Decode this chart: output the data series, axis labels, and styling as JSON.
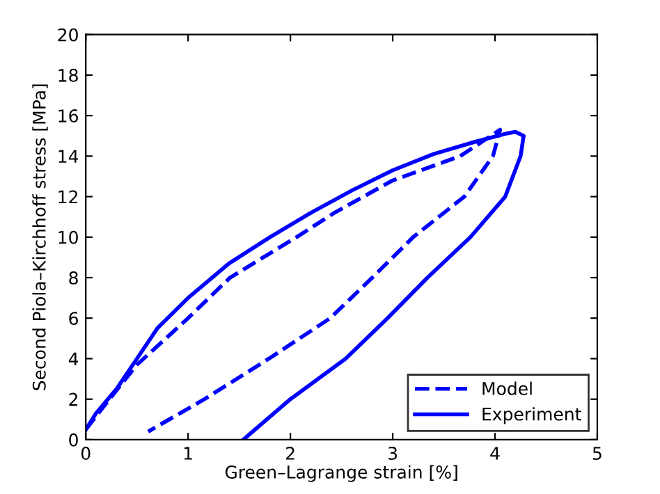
{
  "chart_data": {
    "type": "line",
    "xlabel": "Green–Lagrange strain [%]",
    "ylabel": "Second Piola–Kirchhoff stress [MPa]",
    "xlim": [
      0,
      5
    ],
    "ylim": [
      0,
      20
    ],
    "xticks": [
      0,
      1,
      2,
      3,
      4,
      5
    ],
    "yticks": [
      0,
      2,
      4,
      6,
      8,
      10,
      12,
      14,
      16,
      18,
      20
    ],
    "grid": false,
    "legend": "bottom right",
    "series": [
      {
        "name": "Model",
        "color": "#0000ff",
        "line_style": "dashed",
        "x": [
          0,
          0.2,
          0.5,
          1.0,
          1.41,
          2.06,
          2.43,
          3.0,
          3.66,
          4.05,
          3.98,
          3.7,
          3.2,
          2.8,
          2.39,
          1.79,
          1.16,
          0.61
        ],
        "values": [
          0.5,
          1.8,
          3.7,
          6,
          8,
          10,
          11.2,
          12.8,
          14,
          15.3,
          14,
          12,
          10,
          8,
          6,
          4,
          2,
          0.4
        ]
      },
      {
        "name": "Experiment",
        "color": "#0000ff",
        "line_style": "solid",
        "x": [
          0,
          0.1,
          0.3,
          0.5,
          0.7,
          1.0,
          1.4,
          1.8,
          2.2,
          2.6,
          3.0,
          3.4,
          3.8,
          4.1,
          4.2,
          4.28,
          4.25,
          4.1,
          3.76,
          3.34,
          2.95,
          2.54,
          2.0,
          1.54
        ],
        "values": [
          0.5,
          1.3,
          2.5,
          4.0,
          5.5,
          7.0,
          8.7,
          10.0,
          11.2,
          12.3,
          13.3,
          14.1,
          14.7,
          15.1,
          15.2,
          15.0,
          14,
          12,
          10,
          8,
          6,
          4,
          2,
          0
        ]
      }
    ]
  }
}
